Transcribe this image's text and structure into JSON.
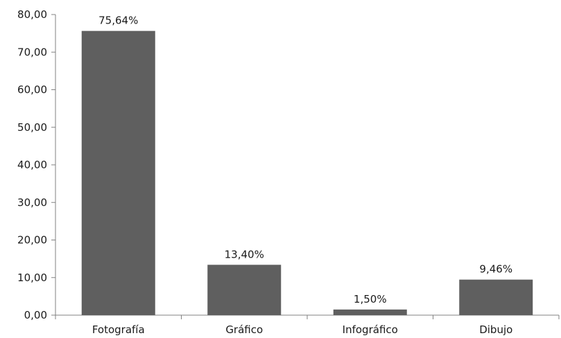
{
  "chart_data": {
    "type": "bar",
    "categories": [
      "Fotografía",
      "Gráfico",
      "Infográfico",
      "Dibujo"
    ],
    "values": [
      75.64,
      13.4,
      1.5,
      9.46
    ],
    "data_labels": [
      "75,64%",
      "13,40%",
      "1,50%",
      "9,46%"
    ],
    "title": "",
    "xlabel": "",
    "ylabel": "",
    "ylim": [
      0,
      80
    ],
    "y_ticks": [
      0,
      10,
      20,
      30,
      40,
      50,
      60,
      70,
      80
    ],
    "y_tick_labels": [
      "0,00",
      "10,00",
      "20,00",
      "30,00",
      "40,00",
      "50,00",
      "60,00",
      "70,00",
      "80,00"
    ],
    "grid": false,
    "legend": "none",
    "colors": {
      "bar": "#5f5f5f",
      "axis": "#808080"
    }
  }
}
